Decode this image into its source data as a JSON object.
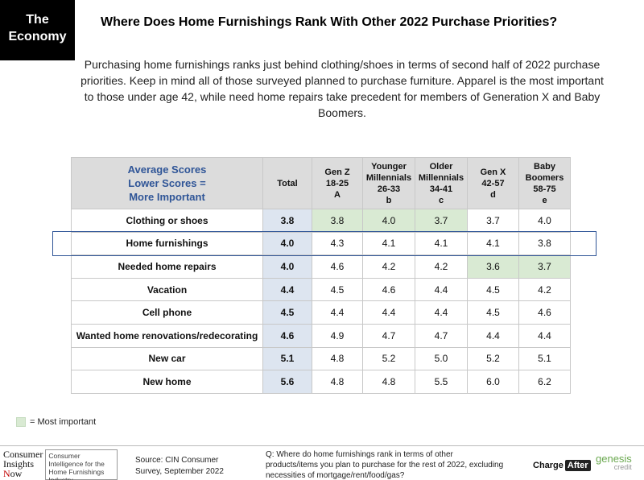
{
  "badge": {
    "line1": "The",
    "line2": "Economy"
  },
  "title": "Where Does Home Furnishings Rank With Other 2022 Purchase Priorities?",
  "subtitle": "Purchasing home furnishings ranks just behind clothing/shoes in terms of second half of 2022 purchase priorities. Keep in mind all of those surveyed planned to purchase furniture. Apparel is the most important to those under age 42, while need home repairs take precedent for members of Generation X and Baby Boomers.",
  "colors": {
    "highlight": "#d9ead3",
    "total_fill": "#dde5f0",
    "header_fill": "#dcdcdc",
    "title_blue": "#2f5597"
  },
  "chart_data": {
    "type": "table",
    "corner_header": [
      "Average Scores",
      "Lower Scores =",
      "More Important"
    ],
    "columns": [
      {
        "lines": [
          "Total"
        ]
      },
      {
        "lines": [
          "Gen Z",
          "18-25",
          "A"
        ]
      },
      {
        "lines": [
          "Younger",
          "Millennials",
          "26-33",
          "b"
        ]
      },
      {
        "lines": [
          "Older",
          "Millennials",
          "34-41",
          "c"
        ]
      },
      {
        "lines": [
          "Gen X",
          "42-57",
          "d"
        ]
      },
      {
        "lines": [
          "Baby",
          "Boomers",
          "58-75",
          "e"
        ]
      }
    ],
    "rows": [
      {
        "label": "Clothing or shoes",
        "values": [
          "3.8",
          "3.8",
          "4.0",
          "3.7",
          "3.7",
          "4.0"
        ],
        "highlighted": [
          1,
          2,
          3
        ]
      },
      {
        "label": "Home furnishings",
        "values": [
          "4.0",
          "4.3",
          "4.1",
          "4.1",
          "4.1",
          "3.8"
        ],
        "highlighted": []
      },
      {
        "label": "Needed home repairs",
        "values": [
          "4.0",
          "4.6",
          "4.2",
          "4.2",
          "3.6",
          "3.7"
        ],
        "highlighted": [
          4,
          5
        ]
      },
      {
        "label": "Vacation",
        "values": [
          "4.4",
          "4.5",
          "4.6",
          "4.4",
          "4.5",
          "4.2"
        ],
        "highlighted": []
      },
      {
        "label": "Cell phone",
        "values": [
          "4.5",
          "4.4",
          "4.4",
          "4.4",
          "4.5",
          "4.6"
        ],
        "highlighted": []
      },
      {
        "label": "Wanted home renovations/redecorating",
        "values": [
          "4.6",
          "4.9",
          "4.7",
          "4.7",
          "4.4",
          "4.4"
        ],
        "highlighted": []
      },
      {
        "label": "New car",
        "values": [
          "5.1",
          "4.8",
          "5.2",
          "5.0",
          "5.2",
          "5.1"
        ],
        "highlighted": []
      },
      {
        "label": "New home",
        "values": [
          "5.6",
          "4.8",
          "4.8",
          "5.5",
          "6.0",
          "6.2"
        ],
        "highlighted": []
      }
    ],
    "outlined_row": "Home furnishings"
  },
  "legend": {
    "label": "= Most important"
  },
  "footer": {
    "logo_lines": [
      "Consumer",
      "Insights",
      "ow"
    ],
    "logo_n": "N",
    "logo_desc": "Consumer Intelligence for the Home Furnishings Industry",
    "source_line1": "Source: CIN Consumer",
    "source_line2": "Survey, September 2022",
    "question": "Q: Where do home furnishings rank in terms of other products/items you plan to purchase for the rest of 2022, excluding necessities of mortgage/rent/food/gas?",
    "chargeafter_1": "Charge",
    "chargeafter_2": "After",
    "genesis_1": "genesis",
    "genesis_2": "credit"
  }
}
